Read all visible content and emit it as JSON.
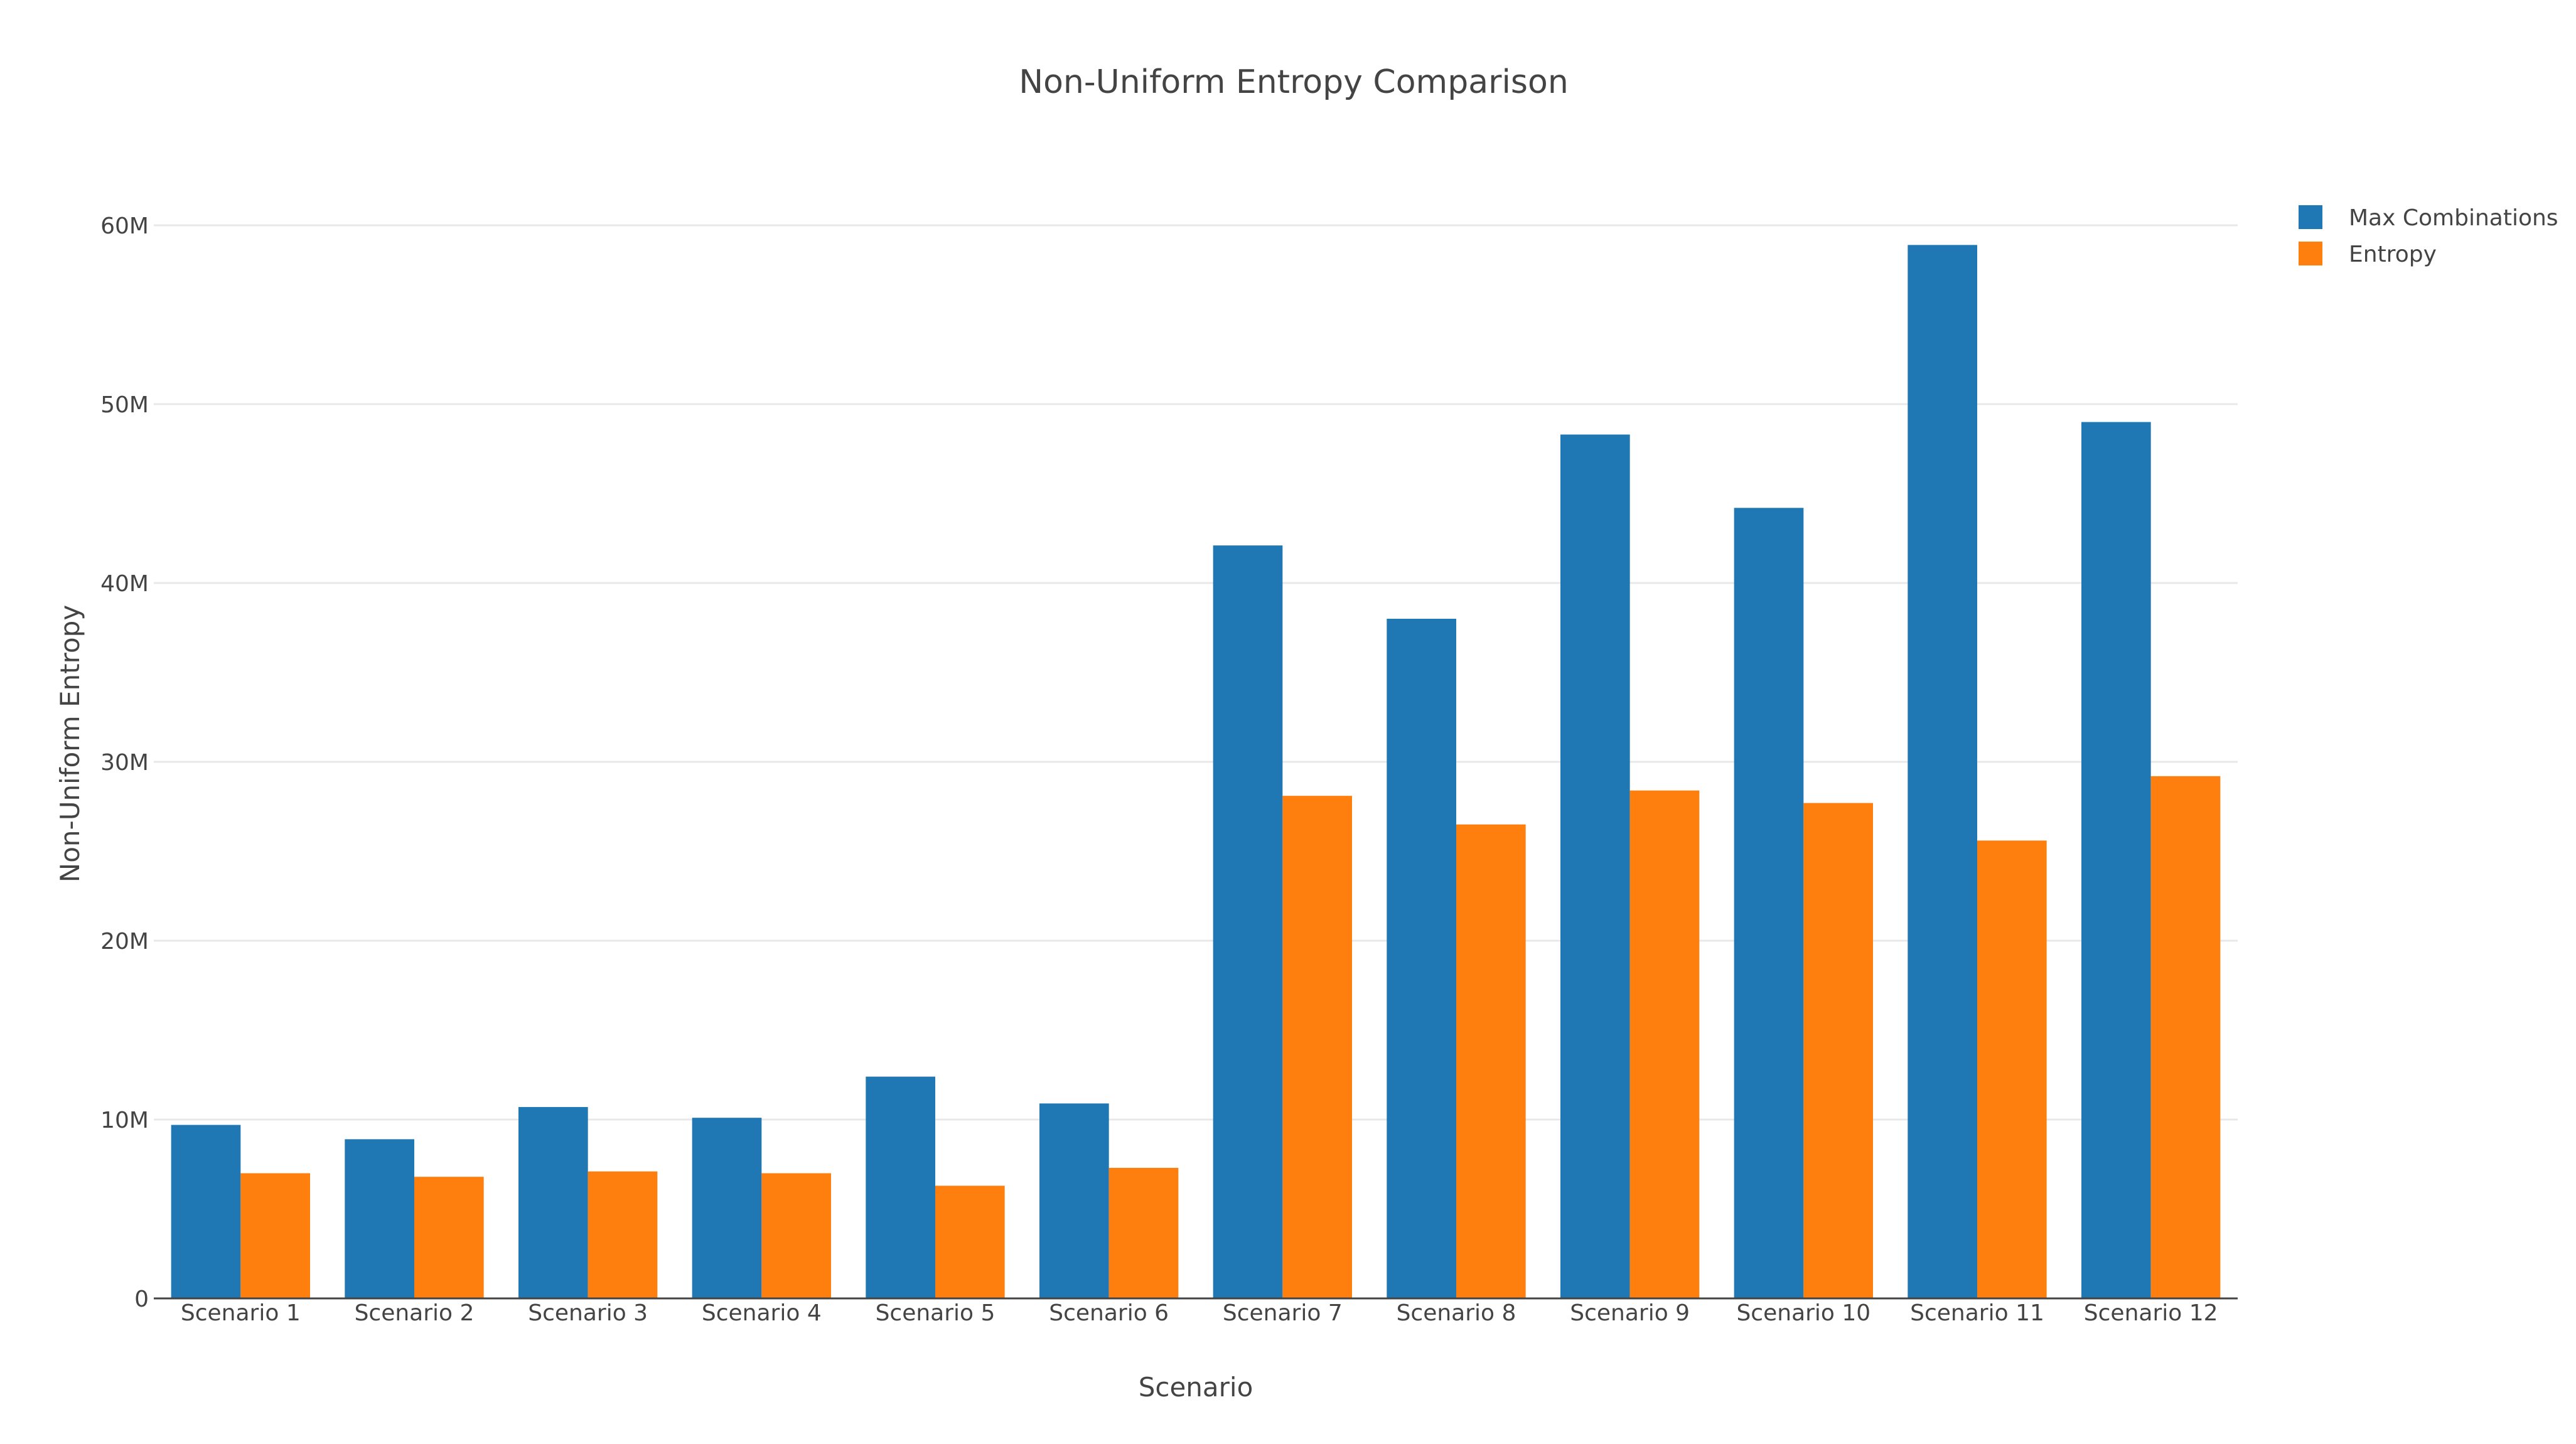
{
  "chart_data": {
    "type": "bar",
    "title": "Non-Uniform Entropy Comparison",
    "xlabel": "Scenario",
    "ylabel": "Non-Uniform Entropy",
    "categories": [
      "Scenario 1",
      "Scenario 2",
      "Scenario  3",
      "Scenario  4",
      "Scenario  5",
      "Scenario  6",
      "Scenario  7",
      "Scenario  8",
      "Scenario  9",
      "Scenario  10",
      "Scenario  11",
      "Scenario  12"
    ],
    "series": [
      {
        "name": "Max Combinations",
        "color": "#1f77b4",
        "values": [
          9700000,
          8900000,
          10700000,
          10100000,
          12400000,
          10900000,
          42100000,
          38000000,
          48300000,
          44200000,
          58900000,
          49000000
        ]
      },
      {
        "name": "Entropy",
        "color": "#ff7f0e",
        "values": [
          7000000,
          6800000,
          7100000,
          7000000,
          6300000,
          7300000,
          28100000,
          26500000,
          28400000,
          27700000,
          25600000,
          29200000
        ]
      }
    ],
    "ylim": [
      0,
      60000000
    ],
    "yticks": [
      {
        "value": 0,
        "label": "0"
      },
      {
        "value": 10000000,
        "label": "10M"
      },
      {
        "value": 20000000,
        "label": "20M"
      },
      {
        "value": 30000000,
        "label": "30M"
      },
      {
        "value": 40000000,
        "label": "40M"
      },
      {
        "value": 50000000,
        "label": "50M"
      },
      {
        "value": 60000000,
        "label": "60M"
      }
    ],
    "grid": true,
    "legend_position": "top-right"
  }
}
